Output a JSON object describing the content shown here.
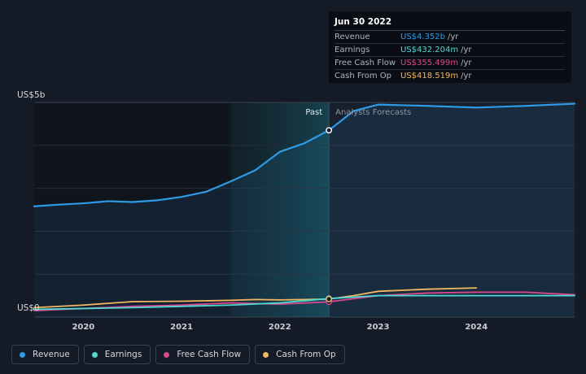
{
  "chart_data": {
    "type": "line",
    "y_unit_label": "US$5b",
    "y_zero_label": "US$0",
    "ylim": [
      0,
      5
    ],
    "xlim": [
      2019.5,
      2025
    ],
    "x_ticks": [
      2020,
      2021,
      2022,
      2023,
      2024
    ],
    "x_tick_labels": [
      "2020",
      "2021",
      "2022",
      "2023",
      "2024"
    ],
    "past_label": "Past",
    "forecast_label": "Analysts Forecasts",
    "divider_x": 2022.5,
    "highlight_from": 2021.5,
    "series": [
      {
        "name": "Revenue",
        "color": "#2f9ae6",
        "x": [
          2019.5,
          2019.75,
          2020.0,
          2020.25,
          2020.5,
          2020.75,
          2021.0,
          2021.25,
          2021.5,
          2021.75,
          2022.0,
          2022.25,
          2022.5,
          2022.75,
          2023.0,
          2023.5,
          2024.0,
          2024.5,
          2025.0
        ],
        "y": [
          2.58,
          2.62,
          2.65,
          2.7,
          2.68,
          2.72,
          2.8,
          2.92,
          3.16,
          3.42,
          3.85,
          4.05,
          4.352,
          4.8,
          4.95,
          4.92,
          4.88,
          4.92,
          4.97
        ]
      },
      {
        "name": "Earnings",
        "color": "#4fd9d3",
        "x": [
          2019.5,
          2020.0,
          2020.5,
          2021.0,
          2021.5,
          2022.0,
          2022.5,
          2023.0,
          2023.5,
          2024.0,
          2024.5,
          2025.0
        ],
        "y": [
          0.18,
          0.2,
          0.22,
          0.25,
          0.28,
          0.33,
          0.432,
          0.5,
          0.5,
          0.5,
          0.5,
          0.5
        ]
      },
      {
        "name": "Free Cash Flow",
        "color": "#d9478f",
        "x": [
          2019.5,
          2020.0,
          2020.5,
          2021.0,
          2021.5,
          2022.0,
          2022.5,
          2023.0,
          2023.5,
          2024.0,
          2024.5,
          2025.0
        ],
        "y": [
          0.15,
          0.2,
          0.25,
          0.28,
          0.33,
          0.3,
          0.355499,
          0.5,
          0.56,
          0.58,
          0.58,
          0.52
        ]
      },
      {
        "name": "Cash From Op",
        "color": "#f2b760",
        "x": [
          2019.5,
          2020.0,
          2020.5,
          2021.0,
          2021.5,
          2021.75,
          2022.0,
          2022.5,
          2022.75,
          2023.0,
          2023.5,
          2024.0
        ],
        "y": [
          0.22,
          0.28,
          0.36,
          0.37,
          0.39,
          0.41,
          0.4,
          0.418519,
          0.5,
          0.6,
          0.65,
          0.68
        ]
      }
    ],
    "markers_x": 2022.5,
    "tooltip": {
      "date": "Jun 30 2022",
      "rows": [
        {
          "label": "Revenue",
          "value": "US$4.352b",
          "unit": "/yr",
          "color": "#2f9ae6"
        },
        {
          "label": "Earnings",
          "value": "US$432.204m",
          "unit": "/yr",
          "color": "#4fd9d3"
        },
        {
          "label": "Free Cash Flow",
          "value": "US$355.499m",
          "unit": "/yr",
          "color": "#d9478f"
        },
        {
          "label": "Cash From Op",
          "value": "US$418.519m",
          "unit": "/yr",
          "color": "#f2b760"
        }
      ]
    }
  },
  "legend": [
    {
      "label": "Revenue",
      "color": "#2f9ae6"
    },
    {
      "label": "Earnings",
      "color": "#4fd9d3"
    },
    {
      "label": "Free Cash Flow",
      "color": "#d9478f"
    },
    {
      "label": "Cash From Op",
      "color": "#f2b760"
    }
  ]
}
